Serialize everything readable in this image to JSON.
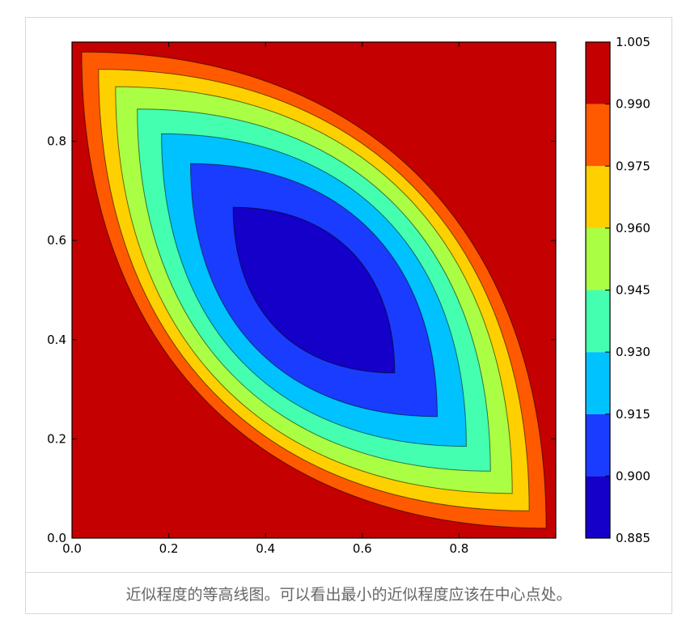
{
  "caption": "近似程度的等高线图。可以看出最小的近似程度应该在中心点处。",
  "chart_data": {
    "type": "contour",
    "title": "",
    "xlabel": "",
    "ylabel": "",
    "xlim": [
      0.0,
      1.0
    ],
    "ylim": [
      0.0,
      1.0
    ],
    "x_ticks": [
      "0.0",
      "0.2",
      "0.4",
      "0.6",
      "0.8"
    ],
    "y_ticks": [
      "0.0",
      "0.2",
      "0.4",
      "0.6",
      "0.8"
    ],
    "colorbar": {
      "levels": [
        0.885,
        0.9,
        0.915,
        0.93,
        0.945,
        0.96,
        0.975,
        0.99,
        1.005
      ],
      "tick_labels": [
        "0.885",
        "0.900",
        "0.915",
        "0.930",
        "0.945",
        "0.960",
        "0.975",
        "0.990",
        "1.005"
      ],
      "colors": [
        "#1400c8",
        "#1a3cff",
        "#00c2ff",
        "#44ffb0",
        "#aaff44",
        "#ffd000",
        "#ff5a00",
        "#c40000"
      ]
    },
    "contour_regions": [
      {
        "level_band": [
          0.99,
          1.005
        ],
        "color": "#c40000",
        "x_extent": [
          0.0,
          1.0
        ],
        "y_extent": [
          0.0,
          1.0
        ]
      },
      {
        "level_band": [
          0.975,
          0.99
        ],
        "color": "#ff5a00",
        "x_extent": [
          0.02,
          0.98
        ],
        "y_extent": [
          0.02,
          0.98
        ]
      },
      {
        "level_band": [
          0.96,
          0.975
        ],
        "color": "#ffd000",
        "x_extent": [
          0.055,
          0.945
        ],
        "y_extent": [
          0.055,
          0.945
        ]
      },
      {
        "level_band": [
          0.945,
          0.96
        ],
        "color": "#aaff44",
        "x_extent": [
          0.09,
          0.91
        ],
        "y_extent": [
          0.09,
          0.91
        ]
      },
      {
        "level_band": [
          0.93,
          0.945
        ],
        "color": "#44ffb0",
        "x_extent": [
          0.135,
          0.865
        ],
        "y_extent": [
          0.135,
          0.865
        ]
      },
      {
        "level_band": [
          0.915,
          0.93
        ],
        "color": "#00c2ff",
        "x_extent": [
          0.185,
          0.815
        ],
        "y_extent": [
          0.185,
          0.815
        ]
      },
      {
        "level_band": [
          0.9,
          0.915
        ],
        "color": "#1a3cff",
        "x_extent": [
          0.245,
          0.755
        ],
        "y_extent": [
          0.245,
          0.755
        ]
      },
      {
        "level_band": [
          0.885,
          0.9
        ],
        "color": "#1400c8",
        "x_extent": [
          0.333,
          0.667
        ],
        "y_extent": [
          0.333,
          0.667
        ]
      }
    ]
  }
}
